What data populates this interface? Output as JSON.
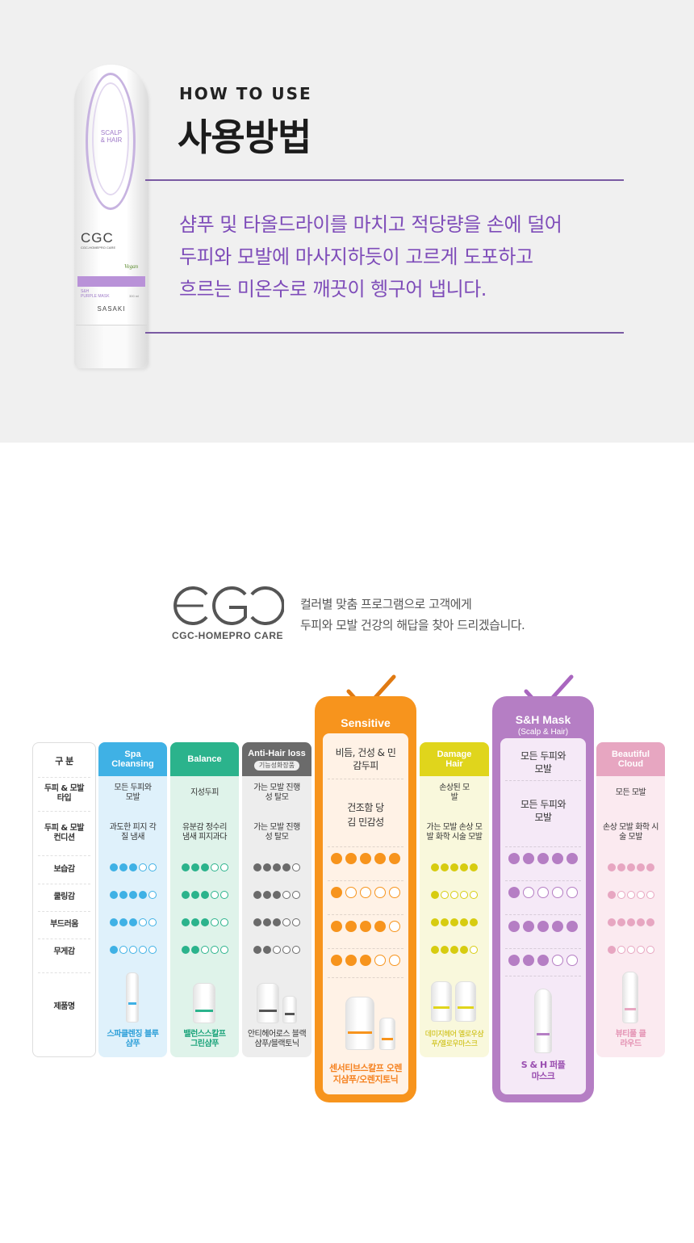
{
  "top": {
    "bottle": {
      "label_line1": "SCALP",
      "label_line2": "& HAIR",
      "brand": "CGC",
      "brand_sub": "CGC-HOMEPRO CARE",
      "vegan": "Vegan",
      "sh": "S&H",
      "product": "PURPLE MASK",
      "volume": "300 ml",
      "maker": "SASAKI"
    },
    "how_to_en": "HOW TO USE",
    "how_to_ko": "사용방법",
    "desc": [
      "샴푸 및 타올드라이를 마치고 적당량을 손에 덜어",
      "두피와 모발에 마사지하듯이 고르게 도포하고",
      "흐르는 미온수로 깨끗이 헹구어 냅니다."
    ]
  },
  "brand": {
    "sub": "CGC-HOMEPRO CARE",
    "intro": [
      "컬러별 맞춤 프로그램으로 고객에게",
      "두피와 모발 건강의 해답을 찾아 드리겠습니다."
    ]
  },
  "row_labels": {
    "category": "구 분",
    "type": "두피 & 모발 타입",
    "condition": "두피 & 모발 컨디션",
    "moisture": "보습감",
    "cooling": "쿨링감",
    "softness": "부드러움",
    "weight": "무게감",
    "product": "제품명"
  },
  "columns": [
    {
      "id": "spa",
      "title": "Spa Cleansing",
      "color": "#3fb1e5",
      "bg": "#dff1fb",
      "type": "모든 두피와 모발",
      "condition": "과도한 피지 각질 냄새",
      "ratings": [
        3,
        4,
        3,
        1
      ],
      "product": "스파클렌징 블루샴푸",
      "name_color": "#2c9fd8"
    },
    {
      "id": "balance",
      "title": "Balance",
      "color": "#2bb38c",
      "bg": "#dff3ea",
      "type": "지성두피",
      "condition": "유분감 정수리 냄새 피지과다",
      "ratings": [
        3,
        3,
        3,
        2
      ],
      "product": "밸런스스칼프 그린샴푸",
      "name_color": "#1aa37a"
    },
    {
      "id": "antihair",
      "title": "Anti-Hair loss",
      "sub": "기능성화장품",
      "color": "#6b6b6b",
      "bg": "#ededed",
      "type": "가는 모발 진행성 탈모",
      "condition": "가는 모발 진행성 탈모",
      "ratings": [
        4,
        3,
        3,
        2
      ],
      "product": "안티헤어로스 블랙샴푸/블랙토닉",
      "name_color": "#333333"
    },
    {
      "id": "sensitive",
      "title": "Sensitive",
      "color": "#f7941d",
      "bg": "#fff2e6",
      "type": "비듬, 건성 & 민감두피",
      "condition": "건조함 당김 민감성",
      "ratings": [
        5,
        1,
        4,
        3
      ],
      "product": "센서티브스칼프 오렌지샴푸/오렌지토닉",
      "name_color": "#f58220"
    },
    {
      "id": "damage",
      "title": "Damage Hair",
      "color": "#e0d51c",
      "bg": "#f9f8dc",
      "type": "손상된 모발",
      "condition": "가는 모발 손상 모발 화학 시술 모발",
      "ratings": [
        5,
        1,
        5,
        4
      ],
      "product": "데미지헤어 옐로우샴푸/옐로우마스크",
      "name_color": "#c9ba00"
    },
    {
      "id": "sh",
      "title": "S&H Mask",
      "sub": "(Scalp & Hair)",
      "color": "#b57ec4",
      "bg": "#f5e9f7",
      "type": "모든 두피와 모발",
      "condition": "모든 두피와 모발",
      "ratings": [
        5,
        1,
        5,
        3
      ],
      "product": "S & H 퍼플마스크",
      "name_color": "#9a4fb0"
    },
    {
      "id": "beautiful",
      "title": "Beautiful Cloud",
      "color": "#e7a6c1",
      "bg": "#fbeaf0",
      "type": "모든 모발",
      "condition": "손상 모발 화학 시술 모발",
      "ratings": [
        5,
        1,
        5,
        1
      ],
      "product": "뷰티풀 클라우드",
      "name_color": "#e493b4"
    }
  ]
}
